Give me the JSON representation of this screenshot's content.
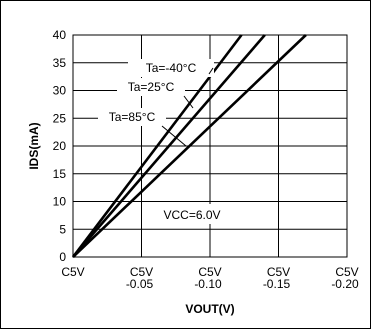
{
  "chart_data": {
    "type": "line",
    "title": "",
    "xlabel": "VOUT(V)",
    "ylabel": "IDS(mA)",
    "x_ticks": [
      {
        "x": 0,
        "lines": [
          "C5V"
        ]
      },
      {
        "x": -0.05,
        "lines": [
          "C5V",
          "-0.05"
        ]
      },
      {
        "x": -0.1,
        "lines": [
          "C5V",
          "-0.10"
        ]
      },
      {
        "x": -0.15,
        "lines": [
          "C5V",
          "-0.15"
        ]
      },
      {
        "x": -0.2,
        "lines": [
          "C5V",
          "-0.20"
        ]
      }
    ],
    "y_ticks": [
      0,
      5,
      10,
      15,
      20,
      25,
      30,
      35,
      40
    ],
    "xlim": [
      0,
      -0.2
    ],
    "ylim": [
      0,
      40
    ],
    "grid": true,
    "series": [
      {
        "name": "Ta=-40°C",
        "points": [
          [
            0,
            0
          ],
          [
            -0.123,
            40
          ]
        ]
      },
      {
        "name": "Ta=25°C",
        "points": [
          [
            0,
            0
          ],
          [
            -0.14,
            40
          ]
        ]
      },
      {
        "name": "Ta=85°C",
        "points": [
          [
            0,
            0
          ],
          [
            -0.17,
            40
          ]
        ]
      }
    ],
    "annotations": [
      {
        "text": "Ta=-40°C",
        "series": 0
      },
      {
        "text": "Ta=25°C",
        "series": 1
      },
      {
        "text": "Ta=85°C",
        "series": 2
      },
      {
        "text": "VCC=6.0V"
      }
    ]
  }
}
